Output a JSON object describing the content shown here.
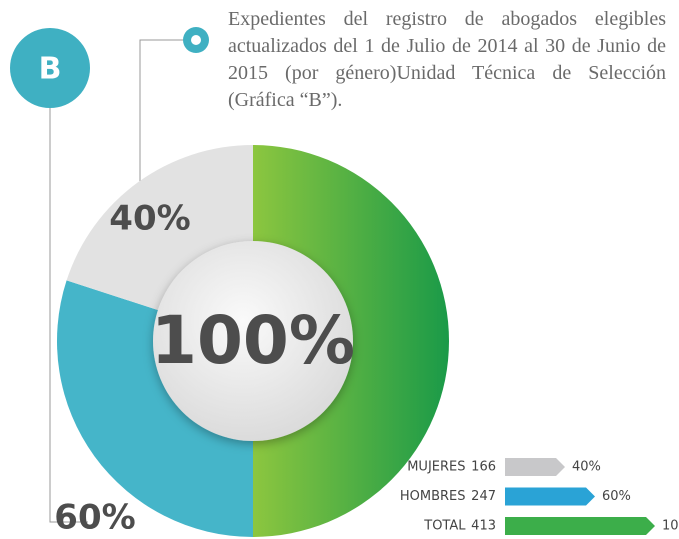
{
  "chart_data": {
    "type": "donut",
    "title": "Expedientes del registro de abogados elegibles actualizados del 1 de Julio de 2014 al 30 de Junio de 2015 (por género)Unidad Técnica de Selección (Gráfica “B”).",
    "badge": "B",
    "categories": [
      "MUJERES",
      "HOMBRES",
      "TOTAL"
    ],
    "counts": [
      166,
      247,
      413
    ],
    "values": [
      40,
      60,
      100
    ],
    "value_labels": [
      "40%",
      "60%",
      "100%"
    ],
    "colors": [
      "#c8c8ca",
      "#2aa3d6",
      "#3cae4a"
    ],
    "donut_colors": [
      "#e2e2e2",
      "#45b5c9",
      "#3dab45"
    ]
  }
}
